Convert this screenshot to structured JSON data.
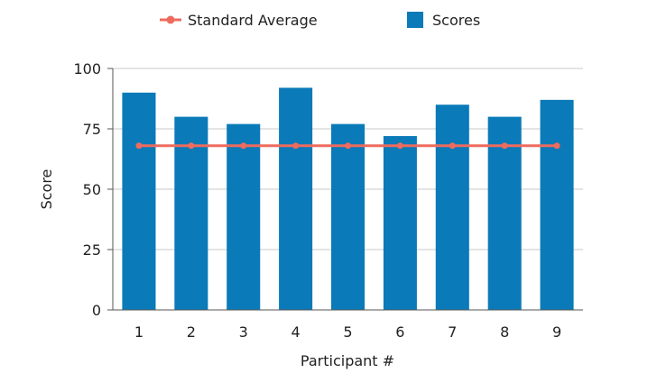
{
  "chart_data": {
    "type": "bar",
    "categories": [
      "1",
      "2",
      "3",
      "4",
      "5",
      "6",
      "7",
      "8",
      "9"
    ],
    "series": [
      {
        "name": "Scores",
        "type": "bar",
        "color": "#0a7ab8",
        "values": [
          90,
          80,
          77,
          92,
          77,
          72,
          85,
          80,
          87
        ]
      },
      {
        "name": "Standard Average",
        "type": "line",
        "color": "#ee6b5e",
        "values": [
          68,
          68,
          68,
          68,
          68,
          68,
          68,
          68,
          68
        ]
      }
    ],
    "xlabel": "Participant #",
    "ylabel": "Score",
    "ylim": [
      0,
      100
    ],
    "yticks": [
      "0",
      "25",
      "50",
      "75",
      "100"
    ],
    "grid": true,
    "legend_position": "top-center"
  }
}
